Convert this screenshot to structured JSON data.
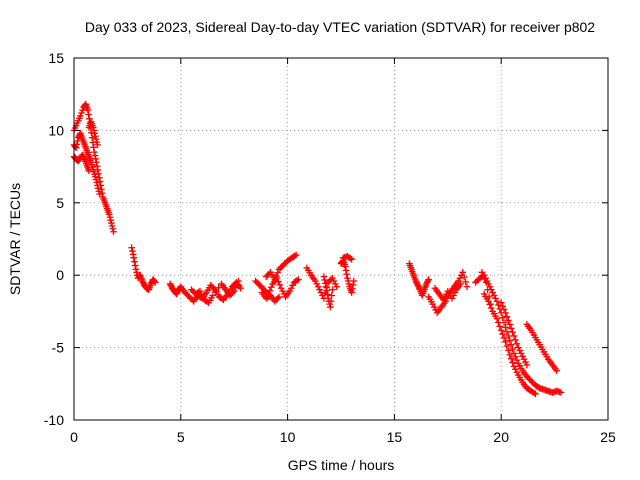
{
  "chart_data": {
    "type": "scatter",
    "title": "Day 033 of 2023, Sidereal Day-to-day VTEC variation (SDTVAR) for receiver p802",
    "xlabel": "GPS time / hours",
    "ylabel": "SDTVAR / TECUs",
    "xlim": [
      0,
      25
    ],
    "ylim": [
      -10,
      15
    ],
    "xticks": [
      0,
      5,
      10,
      15,
      20,
      25
    ],
    "yticks": [
      15,
      10,
      5,
      0,
      -5,
      -10
    ],
    "xtick_labels": [
      "0",
      "5",
      "10",
      "15",
      "20",
      "25"
    ],
    "ytick_labels": [
      "15",
      "10",
      "5",
      "0",
      "-5",
      "-10"
    ],
    "grid": true,
    "marker": "plus",
    "color": "#ff0000",
    "series": [
      {
        "name": "SDTVAR",
        "segments": [
          {
            "x": [
              0.0,
              0.15,
              0.3,
              0.45,
              0.55,
              0.65,
              0.75,
              0.85,
              0.95,
              1.05,
              1.15,
              1.25,
              1.35,
              1.45,
              1.55,
              1.65,
              1.75,
              1.85
            ],
            "y": [
              10.0,
              10.5,
              11.0,
              11.6,
              11.8,
              11.4,
              10.5,
              9.5,
              8.5,
              7.8,
              7.0,
              6.2,
              5.4,
              5.0,
              4.6,
              4.2,
              3.6,
              3.0
            ]
          },
          {
            "x": [
              0.0,
              0.1,
              0.2,
              0.3,
              0.4,
              0.5,
              0.6,
              0.7,
              0.8,
              0.9,
              1.0,
              1.1,
              1.2
            ],
            "y": [
              9.0,
              8.8,
              9.5,
              9.8,
              9.4,
              9.0,
              8.6,
              8.2,
              7.8,
              7.3,
              6.8,
              6.2,
              5.6
            ]
          },
          {
            "x": [
              0.0,
              0.1,
              0.2,
              0.3,
              0.4,
              0.5,
              0.6,
              0.7
            ],
            "y": [
              8.2,
              8.0,
              7.9,
              8.1,
              8.3,
              8.0,
              7.6,
              7.2
            ]
          },
          {
            "x": [
              0.7,
              0.8,
              0.9,
              1.0,
              1.1
            ],
            "y": [
              10.2,
              10.6,
              10.2,
              9.6,
              9.0
            ]
          },
          {
            "x": [
              2.7,
              2.8,
              2.9,
              3.0,
              3.1,
              3.2,
              3.3,
              3.4,
              3.5,
              3.6,
              3.7,
              3.8
            ],
            "y": [
              1.9,
              1.2,
              0.4,
              -0.2,
              0.0,
              -0.4,
              -0.7,
              -0.9,
              -1.0,
              -0.6,
              -0.3,
              -0.5
            ]
          },
          {
            "x": [
              4.5,
              4.6,
              4.7,
              4.8,
              4.9,
              5.0,
              5.2,
              5.4,
              5.6,
              5.8,
              6.0,
              6.2,
              6.4,
              6.6,
              6.8,
              7.0,
              7.2,
              7.4,
              7.6,
              7.8
            ],
            "y": [
              -0.6,
              -0.9,
              -1.1,
              -1.3,
              -1.0,
              -0.8,
              -1.2,
              -1.5,
              -1.8,
              -1.4,
              -1.6,
              -1.2,
              -0.7,
              -1.0,
              -1.5,
              -1.7,
              -1.3,
              -0.8,
              -0.5,
              -0.9
            ]
          },
          {
            "x": [
              5.5,
              5.7,
              5.9,
              6.1,
              6.3,
              6.5,
              6.9,
              7.1,
              7.3,
              7.5,
              7.7
            ],
            "y": [
              -1.0,
              -1.3,
              -1.1,
              -1.7,
              -1.9,
              -1.4,
              -0.6,
              -1.0,
              -1.4,
              -1.1,
              -0.4
            ]
          },
          {
            "x": [
              8.5,
              8.7,
              8.9,
              9.1,
              9.3,
              9.5,
              9.7,
              9.9,
              10.1,
              10.3,
              10.5
            ],
            "y": [
              -0.4,
              -0.7,
              -1.0,
              -1.3,
              -0.6,
              -0.2,
              -0.9,
              -1.5,
              -1.1,
              -0.5,
              -0.3
            ]
          },
          {
            "x": [
              9.0,
              9.2,
              9.4,
              9.6,
              9.8,
              10.0,
              10.2,
              10.4
            ],
            "y": [
              -0.1,
              0.2,
              -0.3,
              0.4,
              0.7,
              1.0,
              1.2,
              1.4
            ]
          },
          {
            "x": [
              8.8,
              9.0,
              9.2,
              9.4,
              9.6
            ],
            "y": [
              -1.2,
              -1.6,
              -1.4,
              -1.8,
              -1.5
            ]
          },
          {
            "x": [
              10.9,
              11.1,
              11.3,
              11.5,
              11.7,
              11.9,
              12.1,
              12.3
            ],
            "y": [
              0.5,
              0.0,
              -0.4,
              -1.0,
              -1.6,
              -0.5,
              -0.2,
              -0.8
            ]
          },
          {
            "x": [
              11.7,
              11.8,
              11.9,
              12.0,
              12.1
            ],
            "y": [
              -0.1,
              -0.8,
              -1.6,
              -2.2,
              -1.0
            ]
          },
          {
            "x": [
              12.5,
              12.6,
              12.7,
              12.8,
              12.9,
              13.0,
              13.1
            ],
            "y": [
              0.8,
              1.0,
              0.6,
              -0.2,
              -0.8,
              -1.2,
              -0.4
            ]
          },
          {
            "x": [
              12.6,
              12.8,
              13.0
            ],
            "y": [
              1.2,
              1.3,
              1.1
            ]
          },
          {
            "x": [
              15.7,
              15.8,
              15.9,
              16.0,
              16.1,
              16.2,
              16.3,
              16.4,
              16.5,
              16.6
            ],
            "y": [
              0.8,
              0.4,
              0.0,
              -0.4,
              -0.7,
              -1.0,
              -1.4,
              -1.0,
              -0.6,
              -0.3
            ]
          },
          {
            "x": [
              16.6,
              16.8,
              17.0,
              17.2,
              17.4,
              17.6,
              17.8,
              18.0,
              18.2,
              18.4
            ],
            "y": [
              -1.5,
              -2.0,
              -2.6,
              -2.2,
              -1.8,
              -1.2,
              -0.8,
              -0.4,
              0.2,
              -0.8
            ]
          },
          {
            "x": [
              16.9,
              17.1,
              17.3,
              17.5,
              17.7,
              17.9,
              18.1
            ],
            "y": [
              -0.9,
              -1.3,
              -1.7,
              -1.1,
              -1.6,
              -1.0,
              -0.6
            ]
          },
          {
            "x": [
              18.8,
              19.0,
              19.2,
              19.4,
              19.6,
              19.8,
              20.0,
              20.2,
              20.4,
              20.6,
              20.8,
              21.0,
              21.2,
              21.4,
              21.6,
              21.8,
              22.0,
              22.2,
              22.4,
              22.6,
              22.8
            ],
            "y": [
              -0.5,
              -0.2,
              0.0,
              -0.6,
              -1.2,
              -1.8,
              -2.6,
              -3.6,
              -4.5,
              -5.4,
              -6.1,
              -6.6,
              -7.0,
              -7.3,
              -7.6,
              -7.8,
              -7.9,
              -8.0,
              -8.1,
              -8.0,
              -8.1
            ]
          },
          {
            "x": [
              19.2,
              19.4,
              19.6,
              19.8,
              20.0,
              20.2,
              20.4,
              20.6,
              20.8,
              21.0,
              21.2,
              21.4,
              21.6
            ],
            "y": [
              -1.3,
              -1.8,
              -2.5,
              -3.0,
              -3.8,
              -4.6,
              -5.5,
              -6.3,
              -6.9,
              -7.4,
              -7.8,
              -8.0,
              -8.2
            ]
          },
          {
            "x": [
              20.0,
              20.2,
              20.4,
              20.6,
              20.8,
              21.0,
              21.2
            ],
            "y": [
              -1.9,
              -2.6,
              -3.4,
              -4.2,
              -5.0,
              -5.6,
              -6.2
            ]
          },
          {
            "x": [
              21.2,
              21.4,
              21.6,
              21.8,
              22.0,
              22.2,
              22.4,
              22.6
            ],
            "y": [
              -3.4,
              -3.8,
              -4.3,
              -4.8,
              -5.3,
              -5.8,
              -6.2,
              -6.6
            ]
          },
          {
            "x": [
              19.1,
              19.3,
              19.5
            ],
            "y": [
              0.2,
              -0.5,
              -2.0
            ]
          }
        ]
      }
    ]
  }
}
